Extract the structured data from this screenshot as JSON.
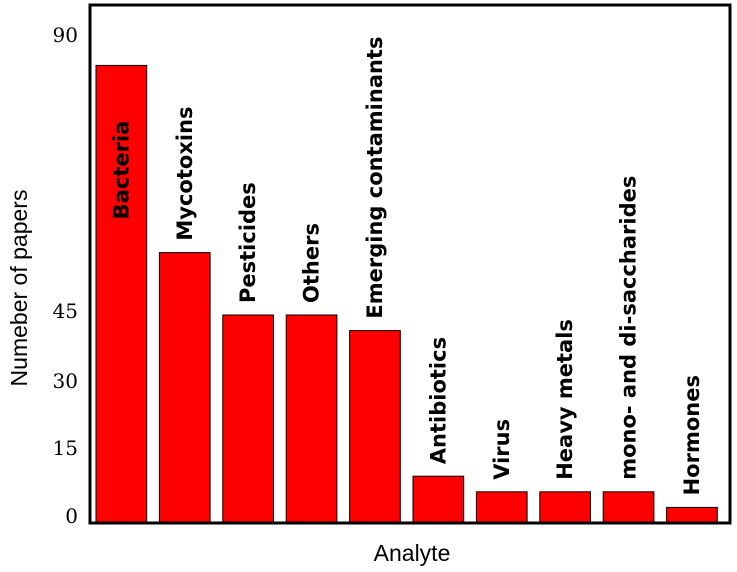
{
  "chart_data": {
    "type": "bar",
    "categories": [
      "Bacteria",
      "Mycotoxins",
      "Pesticides",
      "Others",
      "Emerging contaminants",
      "Antibiotics",
      "Virus",
      "Heavy metals",
      "mono- and di-saccharides",
      "Hormones"
    ],
    "values": [
      88,
      52,
      40,
      40,
      37,
      9,
      6,
      6,
      6,
      3
    ],
    "xlabel": "Analyte",
    "ylabel": "Numeber of papers",
    "yticks": [
      "0",
      "15",
      "30",
      "45",
      "90"
    ],
    "ylim": [
      0,
      97
    ],
    "bar_color": "#ff0000",
    "grid": false
  }
}
